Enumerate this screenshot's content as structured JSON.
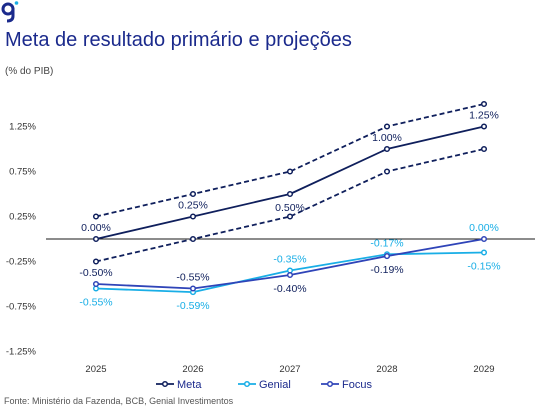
{
  "header": {
    "title": "Meta de resultado primário e projeções",
    "units": "(% do PIB)"
  },
  "footer": {
    "source": "Fonte: Ministério da Fazenda, BCB, Genial Investimentos"
  },
  "colors": {
    "meta": "#0f1f5c",
    "genial": "#19aee6",
    "focus": "#2f44b8",
    "title": "#1b2a8c",
    "logo": "#1b2a8c",
    "logo_accent": "#19aee6"
  },
  "chart_data": {
    "type": "line",
    "x": [
      "2025",
      "2026",
      "2027",
      "2028",
      "2029"
    ],
    "ylim": [
      -1.25,
      1.5
    ],
    "yticks": [
      -1.25,
      -0.75,
      -0.25,
      0.25,
      0.75,
      1.25
    ],
    "ytick_labels": [
      "-1.25%",
      "-0.75%",
      "-0.25%",
      "0.25%",
      "0.75%",
      "1.25%"
    ],
    "grid": false,
    "legend_position": "bottom",
    "series": [
      {
        "name": "Meta",
        "values": [
          0.0,
          0.25,
          0.5,
          1.0,
          1.25
        ],
        "style": "solid",
        "color": "#0f1f5c"
      },
      {
        "name": "",
        "role": "upper band",
        "values": [
          0.25,
          0.5,
          0.75,
          1.25,
          1.5
        ],
        "style": "dashed",
        "color": "#0f1f5c"
      },
      {
        "name": "",
        "role": "lower band",
        "values": [
          -0.25,
          0.0,
          0.25,
          0.75,
          1.0
        ],
        "style": "dashed",
        "color": "#0f1f5c"
      },
      {
        "name": "Genial",
        "values": [
          -0.55,
          -0.59,
          -0.35,
          -0.17,
          -0.15
        ],
        "style": "solid",
        "color": "#19aee6"
      },
      {
        "name": "Focus",
        "values": [
          -0.5,
          -0.55,
          -0.4,
          -0.19,
          0.0
        ],
        "style": "solid",
        "color": "#2f44b8"
      }
    ],
    "data_labels": [
      {
        "text": "0.00%",
        "x": "2025",
        "y": 0.0,
        "place": "above",
        "color": "#0f1f5c"
      },
      {
        "text": "0.25%",
        "x": "2026",
        "y": 0.25,
        "place": "above",
        "color": "#0f1f5c"
      },
      {
        "text": "0.50%",
        "x": "2027",
        "y": 0.5,
        "place": "below",
        "color": "#0f1f5c"
      },
      {
        "text": "1.00%",
        "x": "2028",
        "y": 1.0,
        "place": "above",
        "color": "#0f1f5c"
      },
      {
        "text": "1.25%",
        "x": "2029",
        "y": 1.25,
        "place": "above",
        "color": "#0f1f5c"
      },
      {
        "text": "-0.50%",
        "x": "2025",
        "y": -0.5,
        "place": "above",
        "color": "#0f1f5c"
      },
      {
        "text": "-0.55%",
        "x": "2026",
        "y": -0.55,
        "place": "above",
        "color": "#0f1f5c"
      },
      {
        "text": "-0.40%",
        "x": "2027",
        "y": -0.4,
        "place": "below",
        "color": "#0f1f5c"
      },
      {
        "text": "-0.19%",
        "x": "2028",
        "y": -0.19,
        "place": "below",
        "color": "#0f1f5c"
      },
      {
        "text": "0.00%",
        "x": "2029",
        "y": 0.0,
        "place": "above",
        "color": "#19aee6"
      },
      {
        "text": "-0.55%",
        "x": "2025",
        "y": -0.55,
        "place": "below",
        "color": "#19aee6"
      },
      {
        "text": "-0.59%",
        "x": "2026",
        "y": -0.59,
        "place": "below",
        "color": "#19aee6"
      },
      {
        "text": "-0.35%",
        "x": "2027",
        "y": -0.35,
        "place": "above",
        "color": "#19aee6"
      },
      {
        "text": "-0.17%",
        "x": "2028",
        "y": -0.17,
        "place": "above",
        "color": "#19aee6"
      },
      {
        "text": "-0.15%",
        "x": "2029",
        "y": -0.15,
        "place": "below",
        "color": "#19aee6"
      }
    ]
  }
}
